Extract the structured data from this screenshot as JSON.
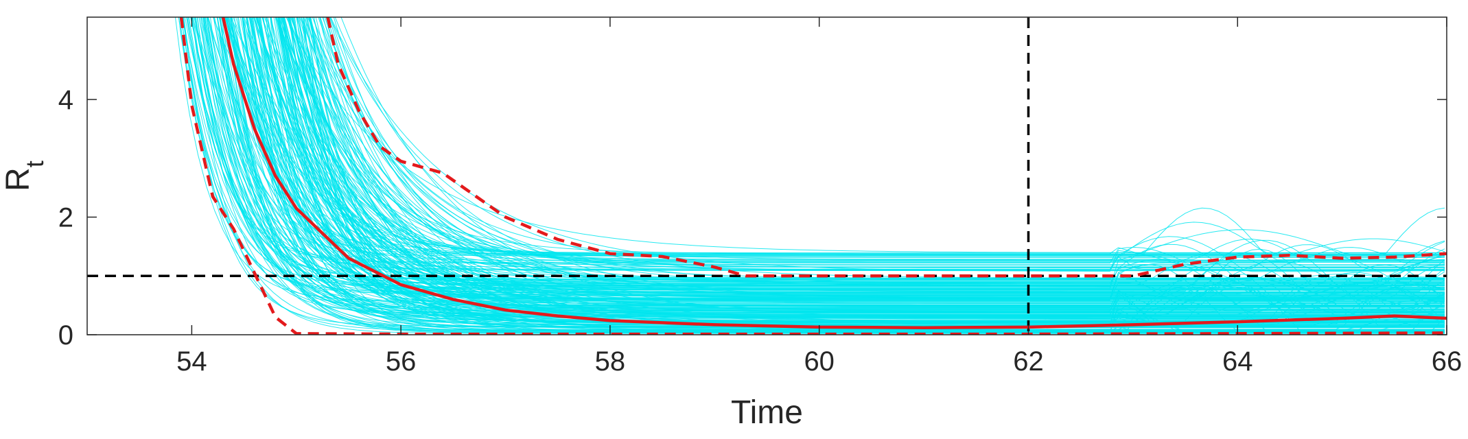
{
  "chart_data": {
    "type": "line",
    "title": "",
    "xlabel": "Time",
    "ylabel": {
      "main": "R",
      "subscript": "t"
    },
    "xlim": [
      53,
      66
    ],
    "ylim": [
      0,
      5.4
    ],
    "xticks": [
      54,
      56,
      58,
      60,
      62,
      64,
      66
    ],
    "yticks": [
      0,
      2,
      4
    ],
    "grid": false,
    "legend": "none",
    "colors": {
      "samples": "#00e5ee",
      "median": "#e31a1c",
      "interval": "#e31a1c",
      "reference": "#000000"
    },
    "reference_lines": {
      "horizontal_y": 1,
      "vertical_x": 62
    },
    "series": [
      {
        "style": "solid",
        "x": [
          54.3,
          54.4,
          54.6,
          54.8,
          55.0,
          55.5,
          56.0,
          56.5,
          57.0,
          57.5,
          58.0,
          59.0,
          60.0,
          61.0,
          62.0,
          63.0,
          64.0,
          65.0,
          65.5,
          66.0
        ],
        "y": [
          5.4,
          4.6,
          3.5,
          2.7,
          2.15,
          1.3,
          0.85,
          0.6,
          0.42,
          0.32,
          0.24,
          0.17,
          0.13,
          0.12,
          0.13,
          0.17,
          0.22,
          0.28,
          0.32,
          0.28
        ]
      },
      {
        "style": "dashed",
        "x": [
          55.3,
          55.4,
          55.6,
          55.8,
          56.0,
          56.4,
          56.6,
          57.0,
          57.5,
          58.0,
          58.5,
          59.0,
          59.3,
          60.0,
          61.0,
          62.0,
          62.8,
          63.0,
          63.5,
          64.0,
          64.5,
          65.0,
          65.5,
          66.0
        ],
        "y": [
          5.4,
          4.6,
          3.8,
          3.2,
          2.95,
          2.75,
          2.5,
          2.0,
          1.62,
          1.38,
          1.33,
          1.15,
          1.0,
          1.0,
          1.0,
          1.0,
          1.0,
          1.0,
          1.2,
          1.32,
          1.35,
          1.3,
          1.32,
          1.38
        ]
      },
      {
        "style": "dashed",
        "x": [
          53.9,
          54.0,
          54.2,
          54.4,
          54.6,
          54.8,
          55.0,
          56.0,
          58.0,
          60.0,
          62.0,
          64.0,
          66.0
        ],
        "y": [
          5.4,
          3.9,
          2.35,
          1.8,
          1.05,
          0.3,
          0.02,
          0.01,
          0.01,
          0.01,
          0.01,
          0.02,
          0.03
        ]
      }
    ]
  }
}
